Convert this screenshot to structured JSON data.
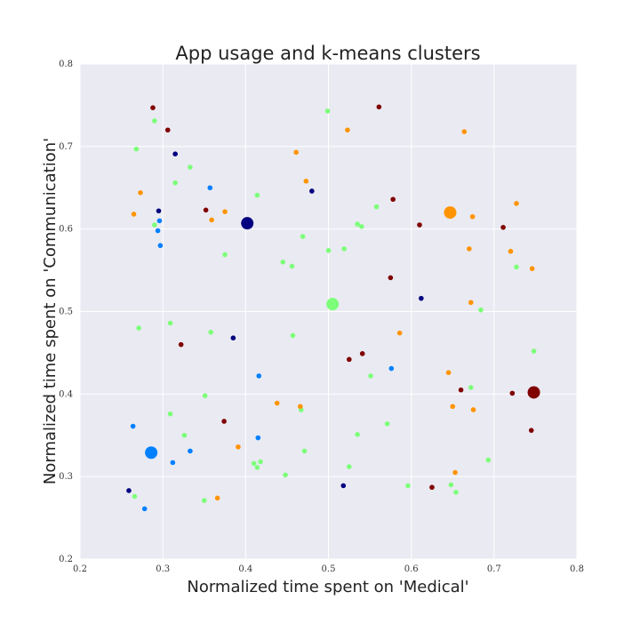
{
  "chart_data": {
    "type": "scatter",
    "title": "App usage and k-means clusters",
    "xlabel": "Normalized time spent on 'Medical'",
    "ylabel": "Normalized time spent on 'Communication'",
    "xlim": [
      0.2,
      0.8
    ],
    "ylim": [
      0.2,
      0.8
    ],
    "xticks": [
      "0.2",
      "0.3",
      "0.4",
      "0.5",
      "0.6",
      "0.7",
      "0.8"
    ],
    "yticks": [
      "0.2",
      "0.3",
      "0.4",
      "0.5",
      "0.6",
      "0.7",
      "0.8"
    ],
    "grid": true,
    "background": "#eaeaf2",
    "series": [
      {
        "color": "#000080",
        "points": [
          [
            0.295,
            0.622
          ],
          [
            0.315,
            0.691
          ],
          [
            0.385,
            0.468
          ],
          [
            0.48,
            0.646
          ],
          [
            0.612,
            0.516
          ],
          [
            0.518,
            0.289
          ],
          [
            0.259,
            0.283
          ]
        ],
        "centroid": [
          0.402,
          0.607
        ]
      },
      {
        "color": "#0080ff",
        "points": [
          [
            0.296,
            0.61
          ],
          [
            0.294,
            0.598
          ],
          [
            0.297,
            0.58
          ],
          [
            0.357,
            0.65
          ],
          [
            0.416,
            0.422
          ],
          [
            0.576,
            0.431
          ],
          [
            0.264,
            0.361
          ],
          [
            0.415,
            0.347
          ],
          [
            0.312,
            0.317
          ],
          [
            0.333,
            0.331
          ],
          [
            0.278,
            0.261
          ]
        ],
        "centroid": [
          0.286,
          0.329
        ]
      },
      {
        "color": "#7dff7a",
        "points": [
          [
            0.29,
            0.731
          ],
          [
            0.268,
            0.697
          ],
          [
            0.333,
            0.675
          ],
          [
            0.315,
            0.656
          ],
          [
            0.414,
            0.641
          ],
          [
            0.29,
            0.605
          ],
          [
            0.375,
            0.569
          ],
          [
            0.499,
            0.743
          ],
          [
            0.558,
            0.627
          ],
          [
            0.535,
            0.606
          ],
          [
            0.54,
            0.603
          ],
          [
            0.469,
            0.591
          ],
          [
            0.445,
            0.56
          ],
          [
            0.456,
            0.555
          ],
          [
            0.5,
            0.574
          ],
          [
            0.519,
            0.576
          ],
          [
            0.271,
            0.48
          ],
          [
            0.309,
            0.486
          ],
          [
            0.358,
            0.475
          ],
          [
            0.457,
            0.471
          ],
          [
            0.684,
            0.502
          ],
          [
            0.727,
            0.554
          ],
          [
            0.748,
            0.452
          ],
          [
            0.551,
            0.422
          ],
          [
            0.672,
            0.408
          ],
          [
            0.351,
            0.398
          ],
          [
            0.467,
            0.381
          ],
          [
            0.309,
            0.376
          ],
          [
            0.326,
            0.35
          ],
          [
            0.571,
            0.364
          ],
          [
            0.535,
            0.351
          ],
          [
            0.41,
            0.316
          ],
          [
            0.418,
            0.318
          ],
          [
            0.414,
            0.311
          ],
          [
            0.471,
            0.331
          ],
          [
            0.448,
            0.302
          ],
          [
            0.525,
            0.312
          ],
          [
            0.693,
            0.32
          ],
          [
            0.596,
            0.289
          ],
          [
            0.648,
            0.29
          ],
          [
            0.654,
            0.281
          ],
          [
            0.266,
            0.276
          ],
          [
            0.35,
            0.271
          ]
        ],
        "centroid": [
          0.505,
          0.509
        ]
      },
      {
        "color": "#ff9400",
        "points": [
          [
            0.523,
            0.72
          ],
          [
            0.461,
            0.693
          ],
          [
            0.473,
            0.658
          ],
          [
            0.273,
            0.644
          ],
          [
            0.265,
            0.618
          ],
          [
            0.359,
            0.611
          ],
          [
            0.375,
            0.621
          ],
          [
            0.664,
            0.718
          ],
          [
            0.727,
            0.631
          ],
          [
            0.674,
            0.615
          ],
          [
            0.67,
            0.576
          ],
          [
            0.72,
            0.573
          ],
          [
            0.746,
            0.552
          ],
          [
            0.672,
            0.511
          ],
          [
            0.586,
            0.474
          ],
          [
            0.645,
            0.426
          ],
          [
            0.438,
            0.389
          ],
          [
            0.466,
            0.385
          ],
          [
            0.65,
            0.385
          ],
          [
            0.675,
            0.381
          ],
          [
            0.391,
            0.336
          ],
          [
            0.653,
            0.305
          ],
          [
            0.366,
            0.274
          ]
        ],
        "centroid": [
          0.647,
          0.62
        ]
      },
      {
        "color": "#800000",
        "points": [
          [
            0.288,
            0.747
          ],
          [
            0.306,
            0.72
          ],
          [
            0.561,
            0.748
          ],
          [
            0.578,
            0.636
          ],
          [
            0.352,
            0.623
          ],
          [
            0.61,
            0.605
          ],
          [
            0.711,
            0.602
          ],
          [
            0.575,
            0.541
          ],
          [
            0.541,
            0.449
          ],
          [
            0.525,
            0.442
          ],
          [
            0.322,
            0.46
          ],
          [
            0.66,
            0.405
          ],
          [
            0.722,
            0.401
          ],
          [
            0.374,
            0.367
          ],
          [
            0.745,
            0.356
          ],
          [
            0.625,
            0.287
          ]
        ],
        "centroid": [
          0.748,
          0.402
        ]
      }
    ]
  }
}
